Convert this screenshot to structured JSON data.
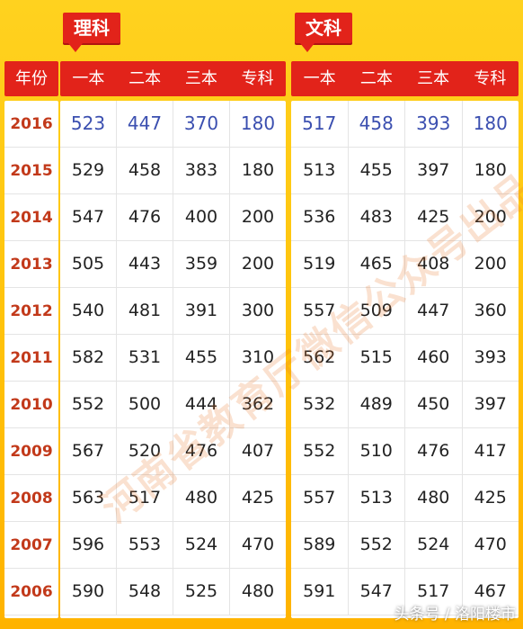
{
  "tags": {
    "science": "理科",
    "arts": "文科"
  },
  "year_header": "年份",
  "science_cols": [
    "一本",
    "二本",
    "三本",
    "专科"
  ],
  "arts_cols": [
    "一本",
    "二本",
    "三本",
    "专科"
  ],
  "rows": [
    {
      "year": "2016",
      "science": [
        "523",
        "447",
        "370",
        "180"
      ],
      "arts": [
        "517",
        "458",
        "393",
        "180"
      ]
    },
    {
      "year": "2015",
      "science": [
        "529",
        "458",
        "383",
        "180"
      ],
      "arts": [
        "513",
        "455",
        "397",
        "180"
      ]
    },
    {
      "year": "2014",
      "science": [
        "547",
        "476",
        "400",
        "200"
      ],
      "arts": [
        "536",
        "483",
        "425",
        "200"
      ]
    },
    {
      "year": "2013",
      "science": [
        "505",
        "443",
        "359",
        "200"
      ],
      "arts": [
        "519",
        "465",
        "408",
        "200"
      ]
    },
    {
      "year": "2012",
      "science": [
        "540",
        "481",
        "391",
        "300"
      ],
      "arts": [
        "557",
        "509",
        "447",
        "360"
      ]
    },
    {
      "year": "2011",
      "science": [
        "582",
        "531",
        "455",
        "310"
      ],
      "arts": [
        "562",
        "515",
        "460",
        "393"
      ]
    },
    {
      "year": "2010",
      "science": [
        "552",
        "500",
        "444",
        "362"
      ],
      "arts": [
        "532",
        "489",
        "450",
        "397"
      ]
    },
    {
      "year": "2009",
      "science": [
        "567",
        "520",
        "476",
        "407"
      ],
      "arts": [
        "552",
        "510",
        "476",
        "417"
      ]
    },
    {
      "year": "2008",
      "science": [
        "563",
        "517",
        "480",
        "425"
      ],
      "arts": [
        "557",
        "513",
        "480",
        "425"
      ]
    },
    {
      "year": "2007",
      "science": [
        "596",
        "553",
        "524",
        "470"
      ],
      "arts": [
        "589",
        "552",
        "524",
        "470"
      ]
    },
    {
      "year": "2006",
      "science": [
        "590",
        "548",
        "525",
        "480"
      ],
      "arts": [
        "591",
        "547",
        "517",
        "467"
      ]
    }
  ],
  "watermark": "河南省教育厅微信公众号出品",
  "footer_credit": "头条号 / 洛阳楼市",
  "colors": {
    "accent_red": "#e2231a",
    "background_yellow": "#ffc20a",
    "highlight_blue": "#3b4fb0",
    "year_text": "#c2391a"
  }
}
